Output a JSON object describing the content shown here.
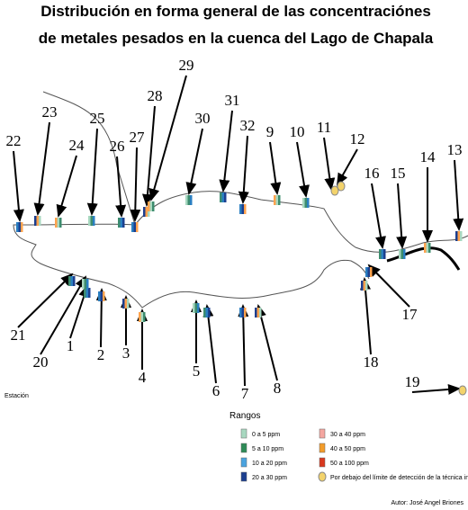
{
  "title": {
    "line1": "Distribución en forma general de las concentraciónes",
    "line2": "de metales pesados en la cuenca del Lago de Chapala"
  },
  "labels": [
    "1",
    "2",
    "3",
    "4",
    "5",
    "6",
    "7",
    "8",
    "9",
    "10",
    "11",
    "12",
    "13",
    "14",
    "15",
    "16",
    "17",
    "18",
    "19",
    "20",
    "21",
    "22",
    "23",
    "24",
    "25",
    "26",
    "27",
    "28",
    "29",
    "30",
    "31",
    "32"
  ],
  "stations_header": "Estación",
  "legend": {
    "title": "Rangos",
    "items": [
      "0 a 5 ppm",
      "5 a 10 ppm",
      "10 a 20 ppm",
      "20 a 30 ppm",
      "30 a 40 ppm",
      "40 a 50 ppm",
      "50 a 100 ppm",
      "Por debajo del límite de detección de la técnica instrumental ICP"
    ]
  },
  "author": "Autor: José Angel Briones"
}
